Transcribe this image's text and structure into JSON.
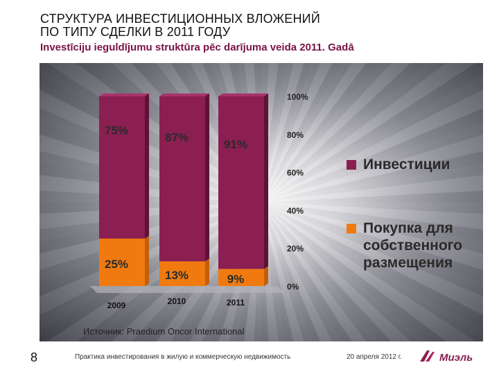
{
  "slide": {
    "title_line1": "СТРУКТУРА ИНВЕСТИЦИОННЫХ ВЛОЖЕНИЙ",
    "title_line2": "ПО ТИПУ СДЕЛКИ В 2011 ГОДУ",
    "subtitle": "Investīciju ieguldījumu struktūra pēc darījuma veida 2011. Gadā",
    "source": "Источник: Praedium Oncor International",
    "page_number": "8",
    "footer_text": "Практика инвестирования в жилую и коммерческую недвижимость",
    "footer_date": "20 апреля 2012 г.",
    "logo_text": "Миэль"
  },
  "colors": {
    "invest": "#8b1f52",
    "own_use": "#f07a10",
    "label_dark": "#2a2a2a"
  },
  "chart_data": {
    "type": "bar",
    "stacked": true,
    "categories": [
      "2009",
      "2010",
      "2011"
    ],
    "series": [
      {
        "name": "Покупка для собственного размещения",
        "values": [
          25,
          13,
          9
        ],
        "labels": [
          "25%",
          "13%",
          "9%"
        ]
      },
      {
        "name": "Инвестиции",
        "values": [
          75,
          87,
          91
        ],
        "labels": [
          "75%",
          "87%",
          "91%"
        ]
      }
    ],
    "yticks": [
      "0%",
      "20%",
      "40%",
      "60%",
      "80%",
      "100%"
    ],
    "ylim": [
      0,
      100
    ],
    "legend": [
      "Инвестиции",
      "Покупка для\nсобственного\nразмещения"
    ]
  }
}
